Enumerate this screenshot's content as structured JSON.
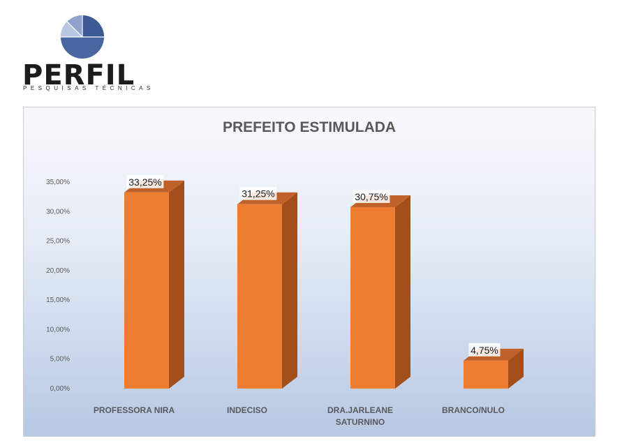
{
  "brand": {
    "name": "PERFIL",
    "tagline": "PESQUISAS TÉCNICAS"
  },
  "colors": {
    "bar_front": "#ED7D31",
    "bar_side": "#A34F1B",
    "bar_top": "#C0612A",
    "logo_blue": "#4A66A0",
    "logo_light": "#9DB0D3"
  },
  "chart_data": {
    "type": "bar",
    "title": "PREFEITO ESTIMULADA",
    "categories": [
      "PROFESSORA NIRA",
      "INDECISO",
      "DRA.JARLEANE SATURNINO",
      "BRANCO/NULO"
    ],
    "category_lines": [
      [
        "PROFESSORA NIRA"
      ],
      [
        "INDECISO"
      ],
      [
        "DRA.JARLEANE",
        "SATURNINO"
      ],
      [
        "BRANCO/NULO"
      ]
    ],
    "values": [
      33.25,
      31.25,
      30.75,
      4.75
    ],
    "data_labels": [
      "33,25%",
      "31,25%",
      "30,75%",
      "4,75%"
    ],
    "y_ticks": [
      0,
      5,
      10,
      15,
      20,
      25,
      30,
      35
    ],
    "y_tick_labels": [
      "0,00%",
      "5,00%",
      "10,00%",
      "15,00%",
      "20,00%",
      "25,00%",
      "30,00%",
      "35,00%"
    ],
    "ylim": [
      0,
      35
    ],
    "grid": false,
    "legend": "none",
    "style": "3d-column"
  }
}
